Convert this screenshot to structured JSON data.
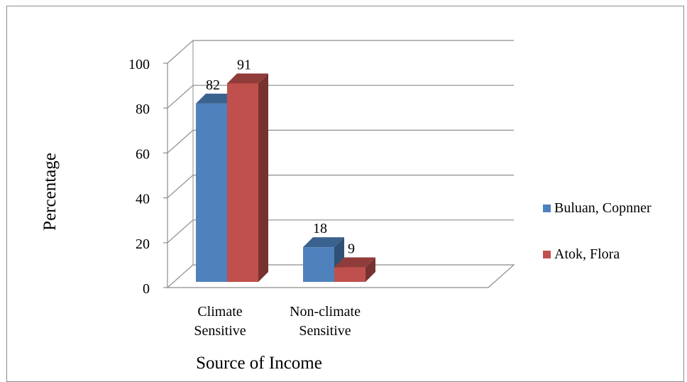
{
  "chart_data": {
    "type": "bar",
    "categories": [
      [
        "Climate",
        "Sensitive"
      ],
      [
        "Non-climate",
        "Sensitive"
      ]
    ],
    "series": [
      {
        "name": "Buluan, Copnner",
        "values": [
          82,
          18
        ],
        "color": "#4f81bd"
      },
      {
        "name": "Atok, Flora",
        "values": [
          91,
          9
        ],
        "color": "#c0504d"
      }
    ],
    "data_labels": [
      [
        "82",
        "18"
      ],
      [
        "91",
        "9"
      ]
    ],
    "yticks": [
      0,
      20,
      40,
      60,
      80,
      100
    ],
    "ylim": [
      0,
      100
    ],
    "xlabel": "Source of Income",
    "ylabel": "Percentage",
    "legend_position": "right",
    "grid": true,
    "style": "3d-clustered-column"
  }
}
